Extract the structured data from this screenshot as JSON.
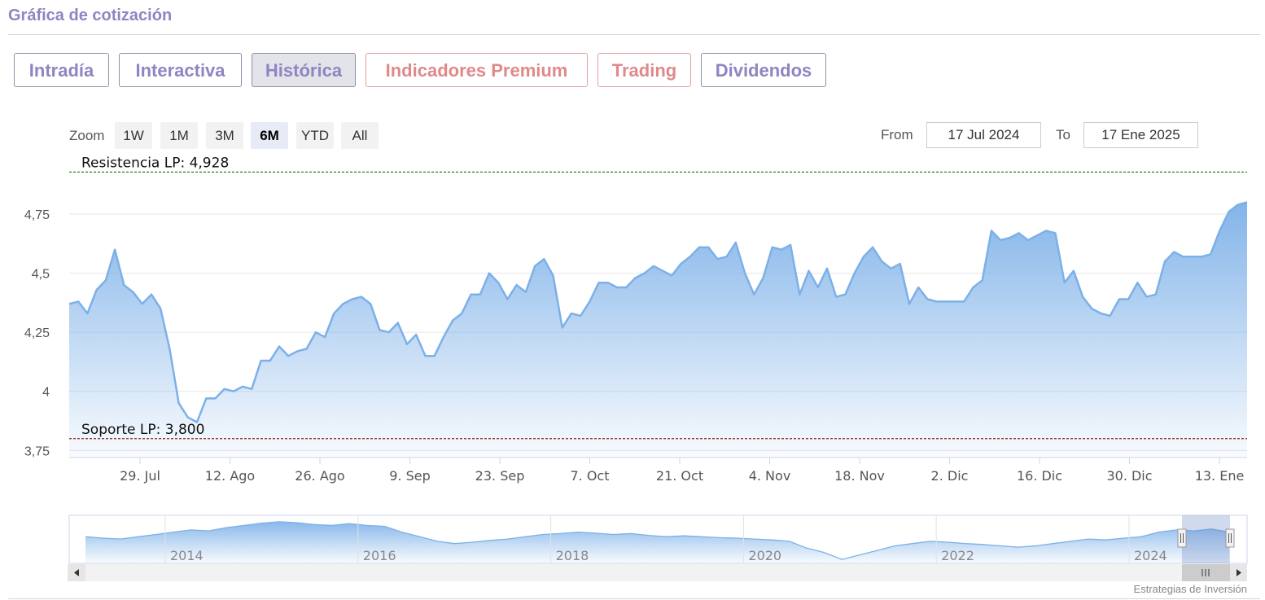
{
  "page": {
    "title": "Gráfica de cotización",
    "credit": "Estrategias de Inversión"
  },
  "tabs": [
    {
      "label": "Intradía",
      "active": false,
      "premium": false
    },
    {
      "label": "Interactiva",
      "active": false,
      "premium": false
    },
    {
      "label": "Histórica",
      "active": true,
      "premium": false
    },
    {
      "label": "Indicadores Premium",
      "active": false,
      "premium": true
    },
    {
      "label": "Trading",
      "active": false,
      "premium": true
    },
    {
      "label": "Dividendos",
      "active": false,
      "premium": false
    }
  ],
  "zoom": {
    "label": "Zoom",
    "buttons": [
      "1W",
      "1M",
      "3M",
      "6M",
      "YTD",
      "All"
    ],
    "active": "6M"
  },
  "range": {
    "from_label": "From",
    "from_value": "17 Jul 2024",
    "to_label": "To",
    "to_value": "17 Ene 2025"
  },
  "colors": {
    "line": "#7cb0e8",
    "resistance": "#2e7d32",
    "support": "#8b1a1a",
    "accent": "#8e85c2"
  },
  "chart_data": {
    "type": "area",
    "ylim": [
      3.72,
      4.95
    ],
    "y_ticks": [
      {
        "value": 3.75,
        "label": "3,75"
      },
      {
        "value": 4,
        "label": "4"
      },
      {
        "value": 4.25,
        "label": "4,25"
      },
      {
        "value": 4.5,
        "label": "4,5"
      },
      {
        "value": 4.75,
        "label": "4,75"
      }
    ],
    "x_ticks": [
      "29. Jul",
      "12. Ago",
      "26. Ago",
      "9. Sep",
      "23. Sep",
      "7. Oct",
      "21. Oct",
      "4. Nov",
      "18. Nov",
      "2. Dic",
      "16. Dic",
      "30. Dic",
      "13. Ene"
    ],
    "annotations": [
      {
        "label": "Resistencia LP: 4,928",
        "value": 4.928,
        "kind": "resistance"
      },
      {
        "label": "Soporte LP: 3,800",
        "value": 3.8,
        "kind": "support"
      }
    ],
    "values": [
      4.37,
      4.38,
      4.33,
      4.43,
      4.47,
      4.6,
      4.45,
      4.42,
      4.37,
      4.41,
      4.35,
      4.18,
      3.95,
      3.89,
      3.87,
      3.97,
      3.97,
      4.01,
      4.0,
      4.02,
      4.01,
      4.13,
      4.13,
      4.19,
      4.15,
      4.17,
      4.18,
      4.25,
      4.23,
      4.33,
      4.37,
      4.39,
      4.4,
      4.37,
      4.26,
      4.25,
      4.29,
      4.2,
      4.24,
      4.15,
      4.15,
      4.23,
      4.3,
      4.33,
      4.41,
      4.41,
      4.5,
      4.46,
      4.39,
      4.45,
      4.42,
      4.53,
      4.56,
      4.49,
      4.27,
      4.33,
      4.32,
      4.38,
      4.46,
      4.46,
      4.44,
      4.44,
      4.48,
      4.5,
      4.53,
      4.51,
      4.49,
      4.54,
      4.57,
      4.61,
      4.61,
      4.56,
      4.57,
      4.63,
      4.5,
      4.41,
      4.48,
      4.61,
      4.6,
      4.62,
      4.41,
      4.51,
      4.44,
      4.52,
      4.4,
      4.41,
      4.5,
      4.57,
      4.61,
      4.55,
      4.52,
      4.54,
      4.37,
      4.44,
      4.39,
      4.38,
      4.38,
      4.38,
      4.38,
      4.44,
      4.47,
      4.68,
      4.64,
      4.65,
      4.67,
      4.64,
      4.66,
      4.68,
      4.67,
      4.46,
      4.51,
      4.4,
      4.35,
      4.33,
      4.32,
      4.39,
      4.39,
      4.46,
      4.4,
      4.41,
      4.55,
      4.59,
      4.57,
      4.57,
      4.57,
      4.58,
      4.68,
      4.76,
      4.79,
      4.8
    ],
    "navigator": {
      "year_labels": [
        "2014",
        "2016",
        "2018",
        "2020",
        "2022",
        "2024"
      ],
      "values": [
        4.45,
        4.42,
        4.4,
        4.45,
        4.5,
        4.55,
        4.6,
        4.58,
        4.65,
        4.7,
        4.75,
        4.78,
        4.76,
        4.72,
        4.7,
        4.74,
        4.7,
        4.68,
        4.55,
        4.45,
        4.35,
        4.3,
        4.33,
        4.37,
        4.4,
        4.45,
        4.5,
        4.52,
        4.55,
        4.53,
        4.5,
        4.52,
        4.48,
        4.45,
        4.47,
        4.45,
        4.43,
        4.42,
        4.4,
        4.38,
        4.35,
        4.2,
        4.1,
        3.95,
        4.05,
        4.15,
        4.25,
        4.3,
        4.35,
        4.33,
        4.3,
        4.28,
        4.25,
        4.22,
        4.25,
        4.3,
        4.35,
        4.4,
        4.38,
        4.42,
        4.45,
        4.55,
        4.6,
        4.58,
        4.62,
        4.55
      ]
    }
  }
}
